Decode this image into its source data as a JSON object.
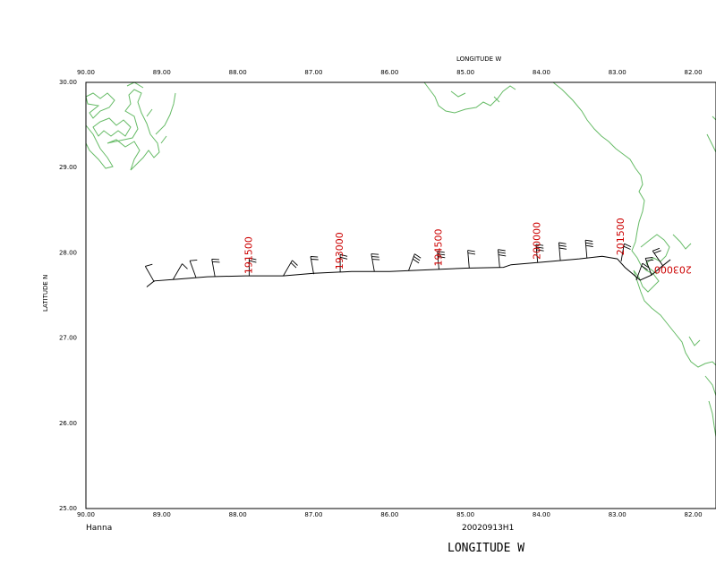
{
  "figure": {
    "top_axis_title": "LONGITUDE  W",
    "left_axis_title": "LATITUDE  N",
    "bottom_axis_title": "LONGITUDE  W",
    "storm_name": "Hanna",
    "flight_id": "20020913H1"
  },
  "axes": {
    "lon_ticks": [
      "90.00",
      "89.00",
      "88.00",
      "87.00",
      "86.00",
      "85.00",
      "84.00",
      "83.00",
      "82.00"
    ],
    "lat_ticks": [
      "30.00",
      "29.00",
      "28.00",
      "27.00",
      "26.00",
      "25.00"
    ],
    "lon_range": [
      90.0,
      81.7
    ],
    "lat_range": [
      25.0,
      30.0
    ]
  },
  "flight_track": {
    "time_labels": [
      {
        "text": "191500",
        "lon": 87.85,
        "lat": 27.73
      },
      {
        "text": "193000",
        "lon": 86.65,
        "lat": 27.78
      },
      {
        "text": "194500",
        "lon": 85.35,
        "lat": 27.82
      },
      {
        "text": "200000",
        "lon": 84.05,
        "lat": 27.9
      },
      {
        "text": "201500",
        "lon": 82.95,
        "lat": 27.95
      },
      {
        "text": "203000",
        "lon": 82.55,
        "lat": 27.82
      }
    ],
    "path": [
      [
        89.2,
        27.6
      ],
      [
        89.1,
        27.67
      ],
      [
        88.8,
        27.69
      ],
      [
        88.4,
        27.72
      ],
      [
        87.9,
        27.73
      ],
      [
        87.4,
        27.73
      ],
      [
        87.0,
        27.76
      ],
      [
        86.5,
        27.78
      ],
      [
        86.0,
        27.78
      ],
      [
        85.5,
        27.8
      ],
      [
        85.0,
        27.82
      ],
      [
        84.5,
        27.83
      ],
      [
        84.4,
        27.86
      ],
      [
        84.0,
        27.89
      ],
      [
        83.5,
        27.93
      ],
      [
        83.2,
        27.96
      ],
      [
        83.0,
        27.93
      ],
      [
        82.9,
        27.83
      ],
      [
        82.7,
        27.68
      ],
      [
        82.55,
        27.74
      ],
      [
        82.4,
        27.85
      ],
      [
        82.3,
        27.92
      ]
    ],
    "wind_barbs": [
      {
        "lon": 89.1,
        "lat": 27.66,
        "dir": 210,
        "flags": 1
      },
      {
        "lon": 88.85,
        "lat": 27.69,
        "dir": 150,
        "flags": 1
      },
      {
        "lon": 88.55,
        "lat": 27.71,
        "dir": 200,
        "flags": 1
      },
      {
        "lon": 88.3,
        "lat": 27.72,
        "dir": 190,
        "flags": 2
      },
      {
        "lon": 87.85,
        "lat": 27.73,
        "dir": 180,
        "flags": 2
      },
      {
        "lon": 87.4,
        "lat": 27.73,
        "dir": 150,
        "flags": 2
      },
      {
        "lon": 87.0,
        "lat": 27.75,
        "dir": 190,
        "flags": 2
      },
      {
        "lon": 86.65,
        "lat": 27.77,
        "dir": 180,
        "flags": 2
      },
      {
        "lon": 86.2,
        "lat": 27.78,
        "dir": 190,
        "flags": 3
      },
      {
        "lon": 85.75,
        "lat": 27.79,
        "dir": 160,
        "flags": 3
      },
      {
        "lon": 85.35,
        "lat": 27.81,
        "dir": 185,
        "flags": 3
      },
      {
        "lon": 84.95,
        "lat": 27.82,
        "dir": 185,
        "flags": 2
      },
      {
        "lon": 84.55,
        "lat": 27.83,
        "dir": 185,
        "flags": 3
      },
      {
        "lon": 84.05,
        "lat": 27.89,
        "dir": 185,
        "flags": 3
      },
      {
        "lon": 83.75,
        "lat": 27.91,
        "dir": 185,
        "flags": 3
      },
      {
        "lon": 83.4,
        "lat": 27.94,
        "dir": 185,
        "flags": 3
      },
      {
        "lon": 82.95,
        "lat": 27.9,
        "dir": 170,
        "flags": 2
      },
      {
        "lon": 82.75,
        "lat": 27.68,
        "dir": 160,
        "flags": 2
      },
      {
        "lon": 82.55,
        "lat": 27.74,
        "dir": 200,
        "flags": 2
      },
      {
        "lon": 82.4,
        "lat": 27.85,
        "dir": 215,
        "flags": 2
      }
    ]
  }
}
